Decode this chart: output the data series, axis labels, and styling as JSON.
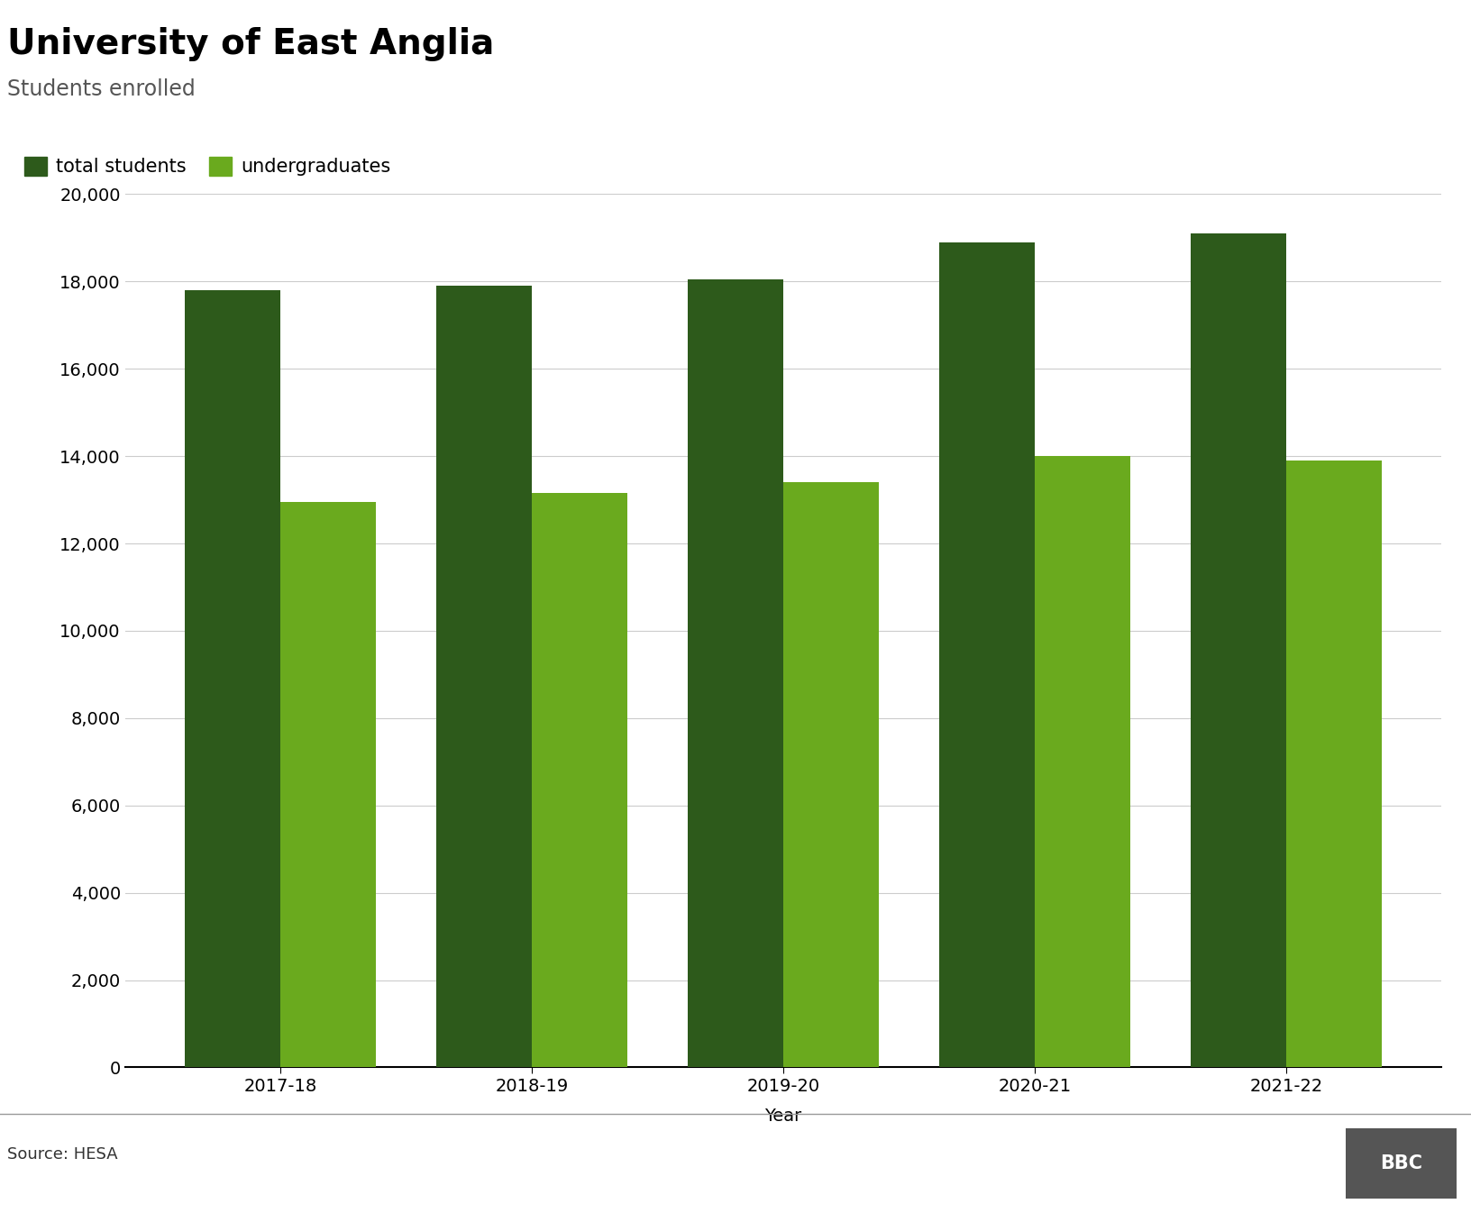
{
  "title": "University of East Anglia",
  "subtitle": "Students enrolled",
  "xlabel": "Year",
  "years": [
    "2017-18",
    "2018-19",
    "2019-20",
    "2020-21",
    "2021-22"
  ],
  "total_students": [
    17800,
    17900,
    18050,
    18900,
    19100
  ],
  "undergraduates": [
    12950,
    13150,
    13400,
    14000,
    13900
  ],
  "total_color": "#2d5a1b",
  "undergrad_color": "#6aaa1e",
  "ylim": [
    0,
    20000
  ],
  "yticks": [
    0,
    2000,
    4000,
    6000,
    8000,
    10000,
    12000,
    14000,
    16000,
    18000,
    20000
  ],
  "legend_labels": [
    "total students",
    "undergraduates"
  ],
  "source": "Source: HESA",
  "title_fontsize": 28,
  "subtitle_fontsize": 17,
  "axis_fontsize": 14,
  "tick_fontsize": 14,
  "legend_fontsize": 15,
  "bar_width": 0.38,
  "background_color": "#ffffff",
  "grid_color": "#cccccc",
  "footer_line_color": "#999999"
}
